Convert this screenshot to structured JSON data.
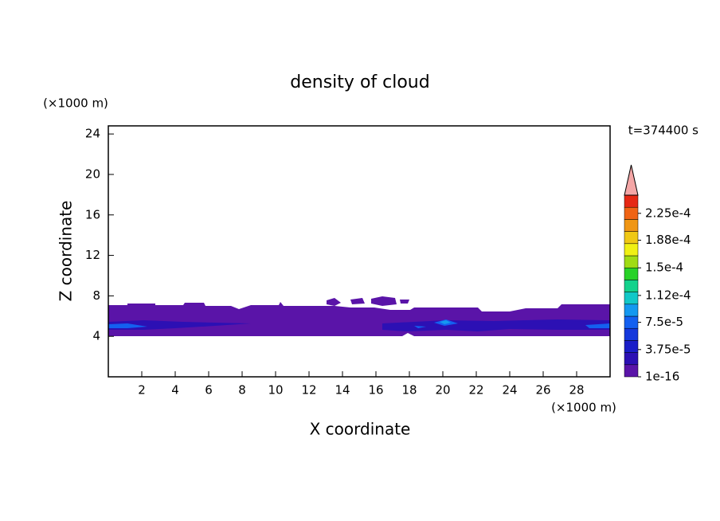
{
  "chart_data": {
    "type": "contour",
    "title": "density of cloud",
    "x_label": "X coordinate",
    "y_label": "Z coordinate",
    "x_unit": "(×1000 m)",
    "y_unit": "(×1000 m)",
    "annotation": "t=374400 s",
    "xlim": [
      0,
      30
    ],
    "ylim": [
      0,
      24.8
    ],
    "xticks": [
      2,
      4,
      6,
      8,
      10,
      12,
      14,
      16,
      18,
      20,
      22,
      24,
      26,
      28
    ],
    "yticks": [
      4,
      8,
      12,
      16,
      20,
      24
    ],
    "clim": [
      1e-16,
      0.00025
    ],
    "colorbar_colors": [
      "#5a14a8",
      "#2c10b4",
      "#1a1ec8",
      "#1438dc",
      "#1460f0",
      "#1498f0",
      "#12c8c8",
      "#14d28c",
      "#28d228",
      "#a0dc14",
      "#f0f014",
      "#f0c814",
      "#f09614",
      "#f06414",
      "#e62814"
    ],
    "over_color": "#f4a6a6",
    "colorbar_ticks": [
      {
        "value": 1e-16,
        "label": "1e-16"
      },
      {
        "value": 3.75e-05,
        "label": "3.75e-5"
      },
      {
        "value": 7.5e-05,
        "label": "7.5e-5"
      },
      {
        "value": 0.000112,
        "label": "1.12e-4"
      },
      {
        "value": 0.00015,
        "label": "1.5e-4"
      },
      {
        "value": 0.000188,
        "label": "1.88e-4"
      },
      {
        "value": 0.000225,
        "label": "2.25e-4"
      }
    ]
  }
}
